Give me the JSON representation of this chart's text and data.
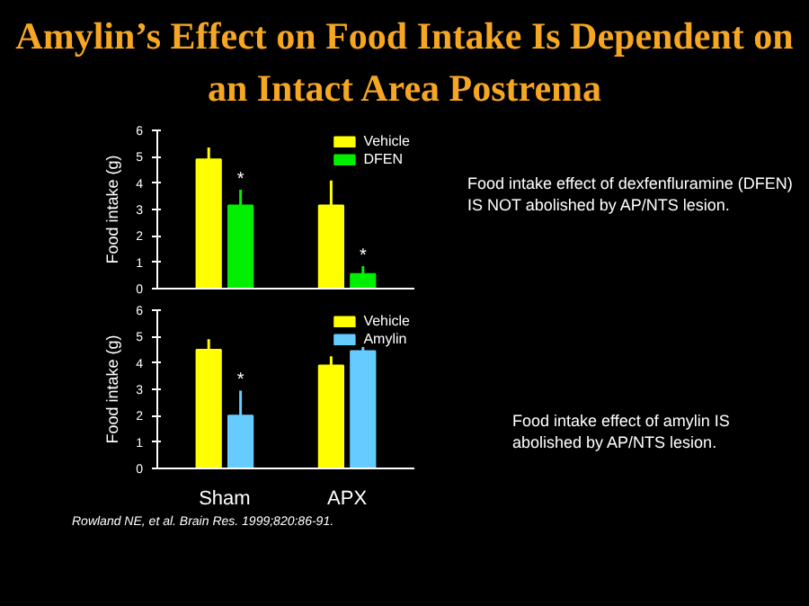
{
  "chart_data": [
    {
      "type": "bar",
      "title": "Amylin’s Effect on Food Intake Is Dependent on an Intact Area Postrema",
      "categories": [
        "Sham",
        "APX"
      ],
      "ylabel": "Food intake (g)",
      "ylim": [
        0,
        6
      ],
      "yticks": [
        0,
        1,
        2,
        3,
        4,
        5,
        6
      ],
      "tick_labels": "y",
      "legend": "top right",
      "grid": false,
      "series": [
        {
          "name": "Vehicle",
          "color": "#ffff00",
          "values": [
            4.9,
            3.15
          ],
          "errors": [
            [
              4.9,
              5.35
            ],
            [
              3.15,
              4.1
            ]
          ]
        },
        {
          "name": "DFEN",
          "color": "#00ee00",
          "values": [
            3.15,
            0.55
          ],
          "errors": [
            [
              3.15,
              3.75
            ],
            [
              0.55,
              0.85
            ]
          ]
        }
      ],
      "annotations": [
        {
          "text": "*",
          "x": "Sham",
          "y": 3.75
        },
        {
          "text": "*",
          "x": "APX",
          "y": 0.85
        },
        "Food intake effect of dexfenfluramine (DFEN) IS NOT abolished by AP/NTS lesion."
      ]
    },
    {
      "type": "bar",
      "categories": [
        "Sham",
        "APX"
      ],
      "ylabel": "Food intake (g)",
      "ylim": [
        0,
        6
      ],
      "yticks": [
        0,
        1,
        2,
        3,
        4,
        5,
        6
      ],
      "legend": "top right",
      "grid": false,
      "series": [
        {
          "name": "Vehicle",
          "color": "#ffff00",
          "values": [
            4.5,
            3.9
          ],
          "errors": [
            [
              4.5,
              4.9
            ],
            [
              3.9,
              4.25
            ]
          ]
        },
        {
          "name": "Amylin",
          "color": "#66ccff",
          "values": [
            2.0,
            4.45
          ],
          "errors": [
            [
              2.0,
              2.95
            ],
            [
              4.45,
              4.65
            ]
          ]
        }
      ],
      "annotations": [
        {
          "text": "*",
          "x": "Sham",
          "y": 2.95
        },
        "Food intake effect of amylin IS abolished by AP/NTS lesion.",
        "Rowland NE, et al. Brain Res. 1999;820:86-91."
      ]
    }
  ]
}
